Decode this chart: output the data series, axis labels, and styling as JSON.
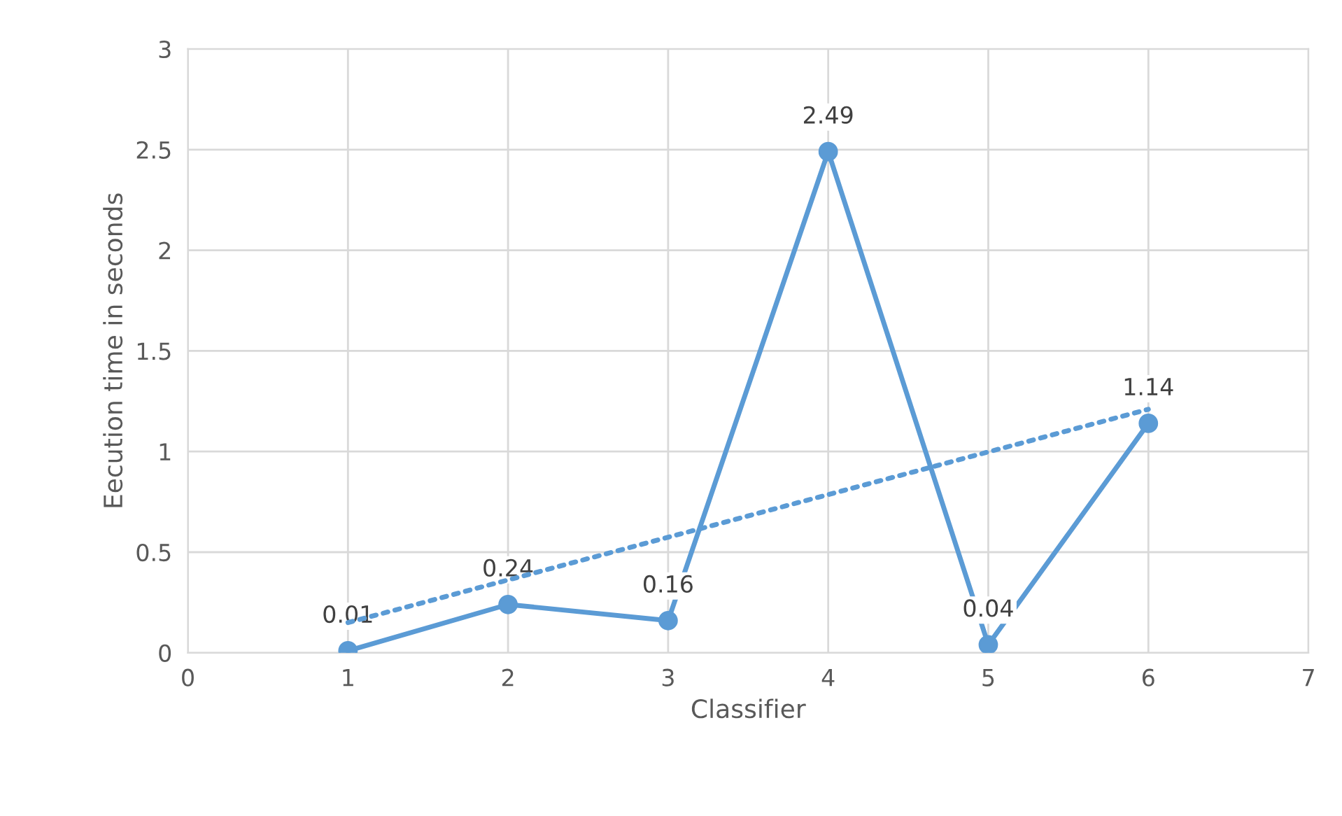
{
  "chart_data": {
    "type": "line",
    "xlabel": "Classifier",
    "ylabel": "Eecution time in seconds",
    "xlim": [
      0,
      7
    ],
    "xticks": [
      0,
      1,
      2,
      3,
      4,
      5,
      6,
      7
    ],
    "ylim": [
      0,
      3
    ],
    "yticks": [
      0,
      0.5,
      1,
      1.5,
      2,
      2.5,
      3
    ],
    "grid": true,
    "marker": "circle",
    "series": [
      {
        "color": "#5b9bd5",
        "x": [
          1,
          2,
          3,
          4,
          5,
          6
        ],
        "values": [
          0.01,
          0.24,
          0.16,
          2.49,
          0.04,
          1.14
        ],
        "value_labels": [
          "0.01",
          "0.24",
          "0.16",
          "2.49",
          "0.04",
          "1.14"
        ],
        "line_style": "solid"
      },
      {
        "color": "#5b9bd5",
        "x": [
          1,
          6
        ],
        "values": [
          0.15,
          1.21
        ],
        "line_style": "dotted",
        "marker": "none"
      }
    ]
  }
}
